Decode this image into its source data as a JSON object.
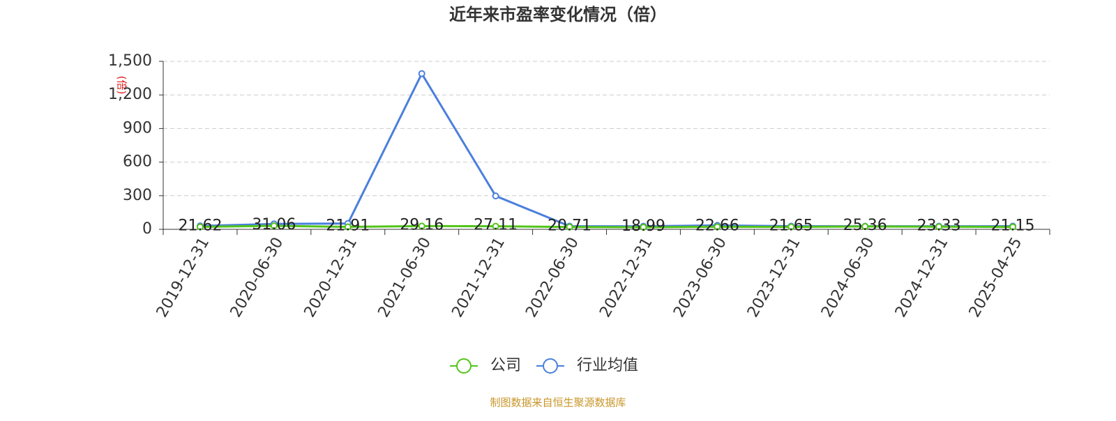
{
  "chart_data": {
    "type": "line",
    "title": "近年来市盈率变化情况（倍）",
    "y_label": "(倍)",
    "source": "制图数据来自恒生聚源数据库",
    "categories": [
      "2019-12-31",
      "2020-06-30",
      "2020-12-31",
      "2021-06-30",
      "2021-12-31",
      "2022-06-30",
      "2022-12-31",
      "2023-06-30",
      "2023-12-31",
      "2024-06-30",
      "2024-12-31",
      "2025-04-25"
    ],
    "series": [
      {
        "name": "公司",
        "color": "#52c41a",
        "values": [
          21.62,
          31.06,
          21.91,
          29.16,
          27.11,
          20.71,
          18.99,
          22.66,
          21.65,
          25.36,
          23.33,
          21.15
        ],
        "labels": true
      },
      {
        "name": "行业均值",
        "color": "#4a7fdc",
        "values": [
          30,
          48,
          52,
          1390,
          298,
          28,
          27,
          35,
          28,
          27,
          27,
          28
        ],
        "labels": false
      }
    ],
    "ylim": [
      0,
      1500
    ],
    "yticks": [
      0,
      300,
      600,
      900,
      {
        "value": 1200,
        "label": "1,200"
      },
      {
        "value": 1500,
        "label": "1,500"
      }
    ],
    "grid": true
  }
}
